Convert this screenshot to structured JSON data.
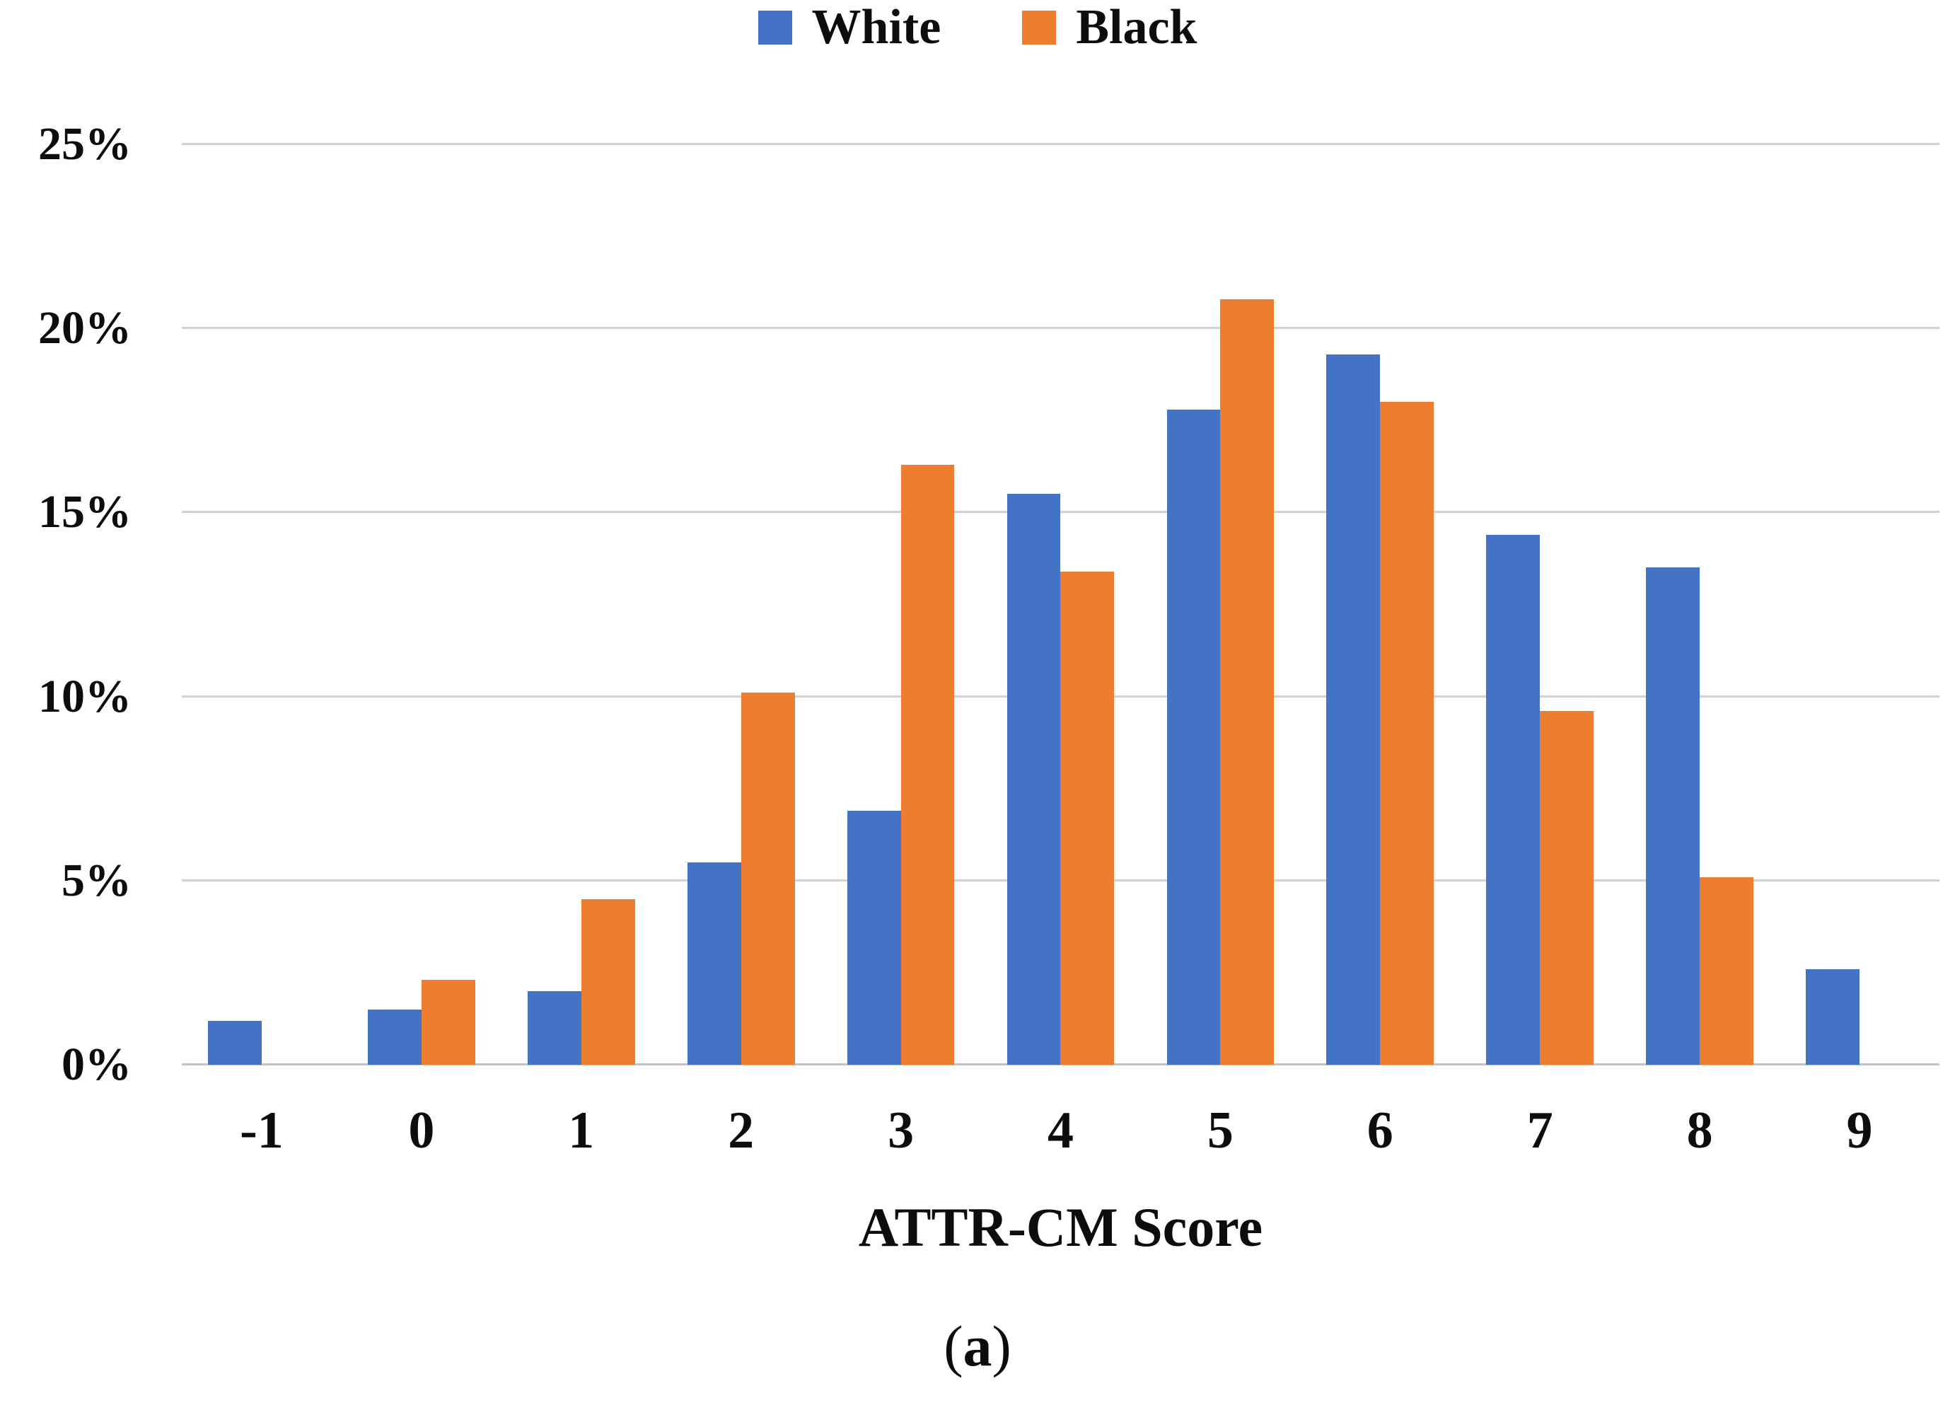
{
  "figure": {
    "caption": {
      "open": "(",
      "letter": "a",
      "close": ")"
    }
  },
  "legend": {
    "items": [
      {
        "label": "White",
        "color": "#4472C4"
      },
      {
        "label": "Black",
        "color": "#ED7D31"
      }
    ]
  },
  "chart_data": {
    "type": "bar",
    "title": "",
    "xlabel": "ATTR-CM Score",
    "ylabel": "",
    "categories": [
      "-1",
      "0",
      "1",
      "2",
      "3",
      "4",
      "5",
      "6",
      "7",
      "8",
      "9"
    ],
    "series": [
      {
        "name": "White",
        "color": "#4472C4",
        "values": [
          1.2,
          1.5,
          2.0,
          5.5,
          6.9,
          15.5,
          17.8,
          19.3,
          14.4,
          13.5,
          2.6
        ]
      },
      {
        "name": "Black",
        "color": "#ED7D31",
        "values": [
          0,
          2.3,
          4.5,
          10.1,
          16.3,
          13.4,
          20.8,
          18.0,
          9.6,
          5.1,
          0
        ]
      }
    ],
    "ylim": [
      0,
      25
    ],
    "yticks": [
      "0%",
      "5%",
      "10%",
      "15%",
      "20%",
      "25%"
    ],
    "grid": true,
    "legend_position": "top"
  },
  "colors": {
    "series_white": "#4472C4",
    "series_black": "#ED7D31",
    "gridline": "#d2d2d2",
    "axis_line": "#c3c3c3",
    "text": "#0d0d0d",
    "background": "#ffffff"
  }
}
